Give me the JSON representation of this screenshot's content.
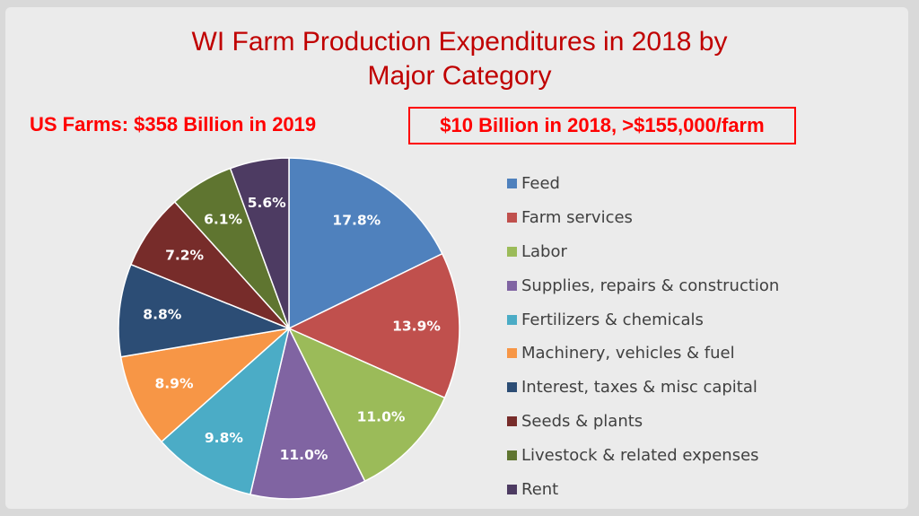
{
  "slide": {
    "title_line1": "WI Farm Production Expenditures in 2018 by",
    "title_line2": "Major Category",
    "note_left": "US Farms: $358 Billion in 2019",
    "note_box": "$10 Billion in 2018, >$155,000/farm"
  },
  "colors": {
    "title": "#c00000",
    "notes": "#ff0000"
  },
  "chart_data": {
    "type": "pie",
    "categories": [
      "Feed",
      "Farm services",
      "Labor",
      "Supplies, repairs & construction",
      "Fertilizers & chemicals",
      "Machinery, vehicles & fuel",
      "Interest, taxes & misc capital",
      "Seeds & plants",
      "Livestock & related expenses",
      "Rent"
    ],
    "values": [
      17.8,
      13.9,
      11.0,
      11.0,
      9.8,
      8.9,
      8.8,
      7.2,
      6.1,
      5.6
    ],
    "data_labels": [
      "17.8%",
      "13.9%",
      "11.0%",
      "11.0%",
      "9.8%",
      "8.9%",
      "8.8%",
      "7.2%",
      "6.1%",
      "5.6%"
    ],
    "colors": [
      "#4f81bd",
      "#c0504d",
      "#9bbb59",
      "#8064a2",
      "#4bacc6",
      "#f79646",
      "#2c4d75",
      "#772c2a",
      "#5f7530",
      "#4d3b62"
    ],
    "legend_position": "right"
  }
}
